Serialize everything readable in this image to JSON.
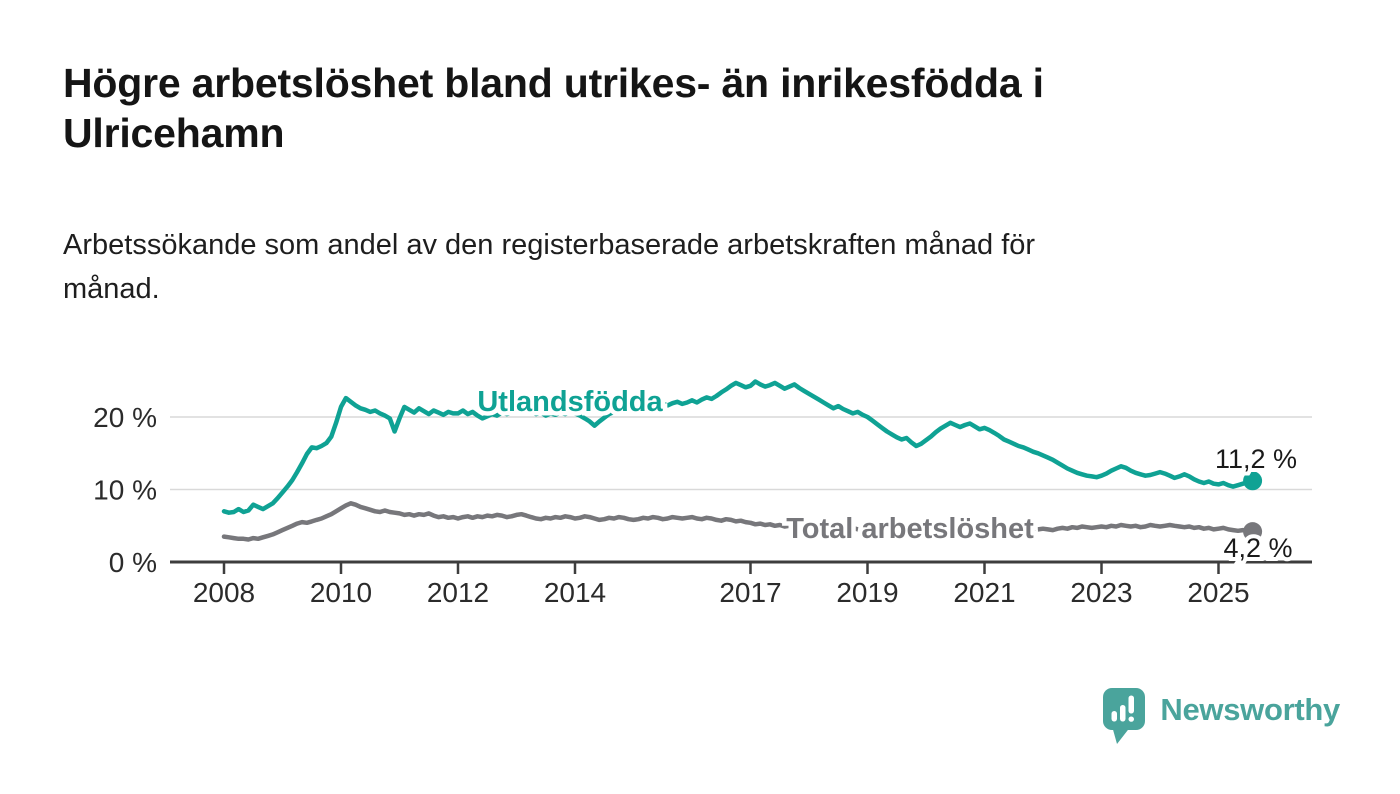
{
  "header": {
    "title": "Högre arbetslöshet bland utrikes- än inrikesfödda i\nUlricehamn",
    "subtitle": "Arbetssökande som andel av den registerbaserade arbetskraften månad för\nmånad."
  },
  "branding": {
    "logo_text": "Newsworthy",
    "logo_icon": "newsworthy-speech-bubble-bar-chart-icon",
    "brand_color": "#4AA49C"
  },
  "chart_data": {
    "type": "line",
    "title": "Högre arbetslöshet bland utrikes- än inrikesfödda i Ulricehamn",
    "xlabel": "",
    "ylabel": "",
    "x_start_year": 2008,
    "points_per_year": 12,
    "x_tick_years": [
      2008,
      2010,
      2012,
      2014,
      2017,
      2019,
      2021,
      2023,
      2025
    ],
    "x_tick_labels": [
      "2008",
      "2010",
      "2012",
      "2014",
      "2017",
      "2019",
      "2021",
      "2023",
      "2025"
    ],
    "y_ticks": [
      0,
      10,
      20
    ],
    "y_tick_labels": [
      "0 %",
      "10 %",
      "20 %"
    ],
    "ylim": [
      0,
      26
    ],
    "grid": "horizontal-at-10-and-20",
    "legend_position": "inline-labels-on-lines",
    "colors": {
      "grid": "#d9d9d9",
      "axis": "#3d3d3d",
      "tick_text": "#2b2b2b",
      "end_label_text": "#1a1a1a"
    },
    "series": [
      {
        "name": "Utlandsfödda",
        "label_text": "Utlandsfödda",
        "color": "#0FA294",
        "end_value": 11.2,
        "end_label": "11,2 %",
        "values": [
          7.0,
          6.8,
          6.9,
          7.3,
          6.9,
          7.1,
          7.9,
          7.6,
          7.3,
          7.7,
          8.1,
          8.8,
          9.6,
          10.4,
          11.3,
          12.4,
          13.6,
          14.9,
          15.8,
          15.7,
          16.0,
          16.4,
          17.3,
          19.2,
          21.4,
          22.6,
          22.1,
          21.6,
          21.2,
          21.0,
          20.7,
          20.9,
          20.5,
          20.2,
          19.8,
          18.0,
          19.8,
          21.4,
          21.0,
          20.6,
          21.2,
          20.8,
          20.4,
          20.9,
          20.6,
          20.3,
          20.7,
          20.5,
          20.5,
          20.9,
          20.4,
          20.7,
          20.2,
          19.8,
          20.1,
          20.4,
          20.2,
          20.6,
          20.4,
          20.6,
          20.8,
          21.0,
          20.6,
          20.8,
          20.4,
          20.6,
          20.2,
          20.5,
          20.3,
          20.6,
          20.4,
          20.7,
          20.5,
          20.2,
          19.8,
          19.4,
          18.8,
          19.4,
          19.9,
          20.4,
          20.7,
          21.0,
          20.8,
          21.1,
          21.0,
          21.3,
          21.6,
          21.4,
          21.2,
          21.5,
          21.8,
          21.6,
          21.9,
          22.1,
          21.8,
          22.0,
          22.3,
          22.0,
          22.4,
          22.7,
          22.5,
          22.9,
          23.4,
          23.8,
          24.3,
          24.7,
          24.4,
          24.1,
          24.3,
          24.9,
          24.5,
          24.2,
          24.4,
          24.7,
          24.3,
          23.9,
          24.2,
          24.5,
          24.0,
          23.6,
          23.2,
          22.8,
          22.4,
          22.0,
          21.6,
          21.2,
          21.5,
          21.1,
          20.8,
          20.5,
          20.7,
          20.3,
          20.0,
          19.5,
          19.0,
          18.5,
          18.0,
          17.6,
          17.2,
          16.9,
          17.1,
          16.5,
          16.0,
          16.3,
          16.8,
          17.3,
          17.9,
          18.4,
          18.8,
          19.2,
          18.9,
          18.6,
          18.9,
          19.1,
          18.7,
          18.3,
          18.5,
          18.2,
          17.8,
          17.4,
          16.9,
          16.6,
          16.3,
          16.0,
          15.8,
          15.5,
          15.2,
          15.0,
          14.7,
          14.4,
          14.1,
          13.7,
          13.3,
          12.9,
          12.6,
          12.3,
          12.1,
          11.9,
          11.8,
          11.7,
          11.9,
          12.2,
          12.6,
          12.9,
          13.2,
          13.0,
          12.6,
          12.3,
          12.1,
          11.9,
          12.0,
          12.2,
          12.4,
          12.2,
          11.9,
          11.6,
          11.8,
          12.1,
          11.8,
          11.4,
          11.1,
          10.9,
          11.1,
          10.8,
          10.7,
          10.9,
          10.6,
          10.4,
          10.6,
          10.8,
          11.0,
          11.2
        ]
      },
      {
        "name": "Total arbetslöshet",
        "label_text": "Total arbetslöshet",
        "color": "#77777B",
        "end_value": 4.2,
        "end_label": "4,2 %",
        "values": [
          3.5,
          3.4,
          3.3,
          3.2,
          3.2,
          3.1,
          3.3,
          3.2,
          3.4,
          3.6,
          3.8,
          4.1,
          4.4,
          4.7,
          5.0,
          5.3,
          5.5,
          5.4,
          5.6,
          5.8,
          6.0,
          6.3,
          6.6,
          7.0,
          7.4,
          7.8,
          8.1,
          7.9,
          7.6,
          7.4,
          7.2,
          7.0,
          6.9,
          7.1,
          6.9,
          6.8,
          6.7,
          6.5,
          6.6,
          6.4,
          6.6,
          6.5,
          6.7,
          6.4,
          6.2,
          6.3,
          6.1,
          6.2,
          6.0,
          6.2,
          6.3,
          6.1,
          6.3,
          6.2,
          6.4,
          6.3,
          6.5,
          6.4,
          6.2,
          6.3,
          6.5,
          6.6,
          6.4,
          6.2,
          6.0,
          5.9,
          6.1,
          6.0,
          6.2,
          6.1,
          6.3,
          6.2,
          6.0,
          6.1,
          6.3,
          6.2,
          6.0,
          5.8,
          5.9,
          6.1,
          6.0,
          6.2,
          6.1,
          5.9,
          5.8,
          5.9,
          6.1,
          6.0,
          6.2,
          6.1,
          5.9,
          6.0,
          6.2,
          6.1,
          6.0,
          6.1,
          6.2,
          6.0,
          5.9,
          6.1,
          6.0,
          5.8,
          5.7,
          5.9,
          5.8,
          5.6,
          5.7,
          5.5,
          5.4,
          5.2,
          5.3,
          5.1,
          5.2,
          5.0,
          5.1,
          4.9,
          5.0,
          4.9,
          5.1,
          5.0,
          4.9,
          4.8,
          4.9,
          4.7,
          4.8,
          4.6,
          4.7,
          4.8,
          4.6,
          4.7,
          4.5,
          4.6,
          4.7,
          4.6,
          4.7,
          4.8,
          4.6,
          4.7,
          4.9,
          4.8,
          4.7,
          4.8,
          4.9,
          5.0,
          5.1,
          5.0,
          5.2,
          5.4,
          5.3,
          5.2,
          5.1,
          5.0,
          4.9,
          5.0,
          4.8,
          4.9,
          5.0,
          4.9,
          4.8,
          4.7,
          4.6,
          4.7,
          4.5,
          4.6,
          4.4,
          4.5,
          4.6,
          4.5,
          4.6,
          4.5,
          4.4,
          4.6,
          4.7,
          4.6,
          4.8,
          4.7,
          4.9,
          4.8,
          4.7,
          4.8,
          4.9,
          4.8,
          5.0,
          4.9,
          5.1,
          5.0,
          4.9,
          5.0,
          4.8,
          4.9,
          5.1,
          5.0,
          4.9,
          5.0,
          5.1,
          5.0,
          4.9,
          4.8,
          4.9,
          4.7,
          4.8,
          4.6,
          4.7,
          4.5,
          4.6,
          4.7,
          4.5,
          4.4,
          4.3,
          4.4,
          4.3,
          4.2
        ]
      }
    ]
  }
}
